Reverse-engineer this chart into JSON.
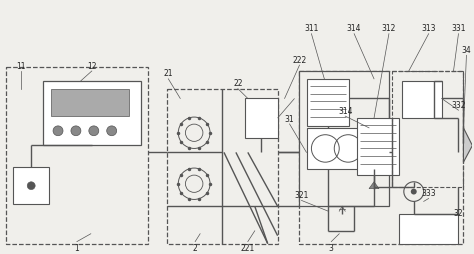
{
  "bg_color": "#f0efeb",
  "line_color": "#555555",
  "fig_width": 4.74,
  "fig_height": 2.55,
  "dpi": 100
}
